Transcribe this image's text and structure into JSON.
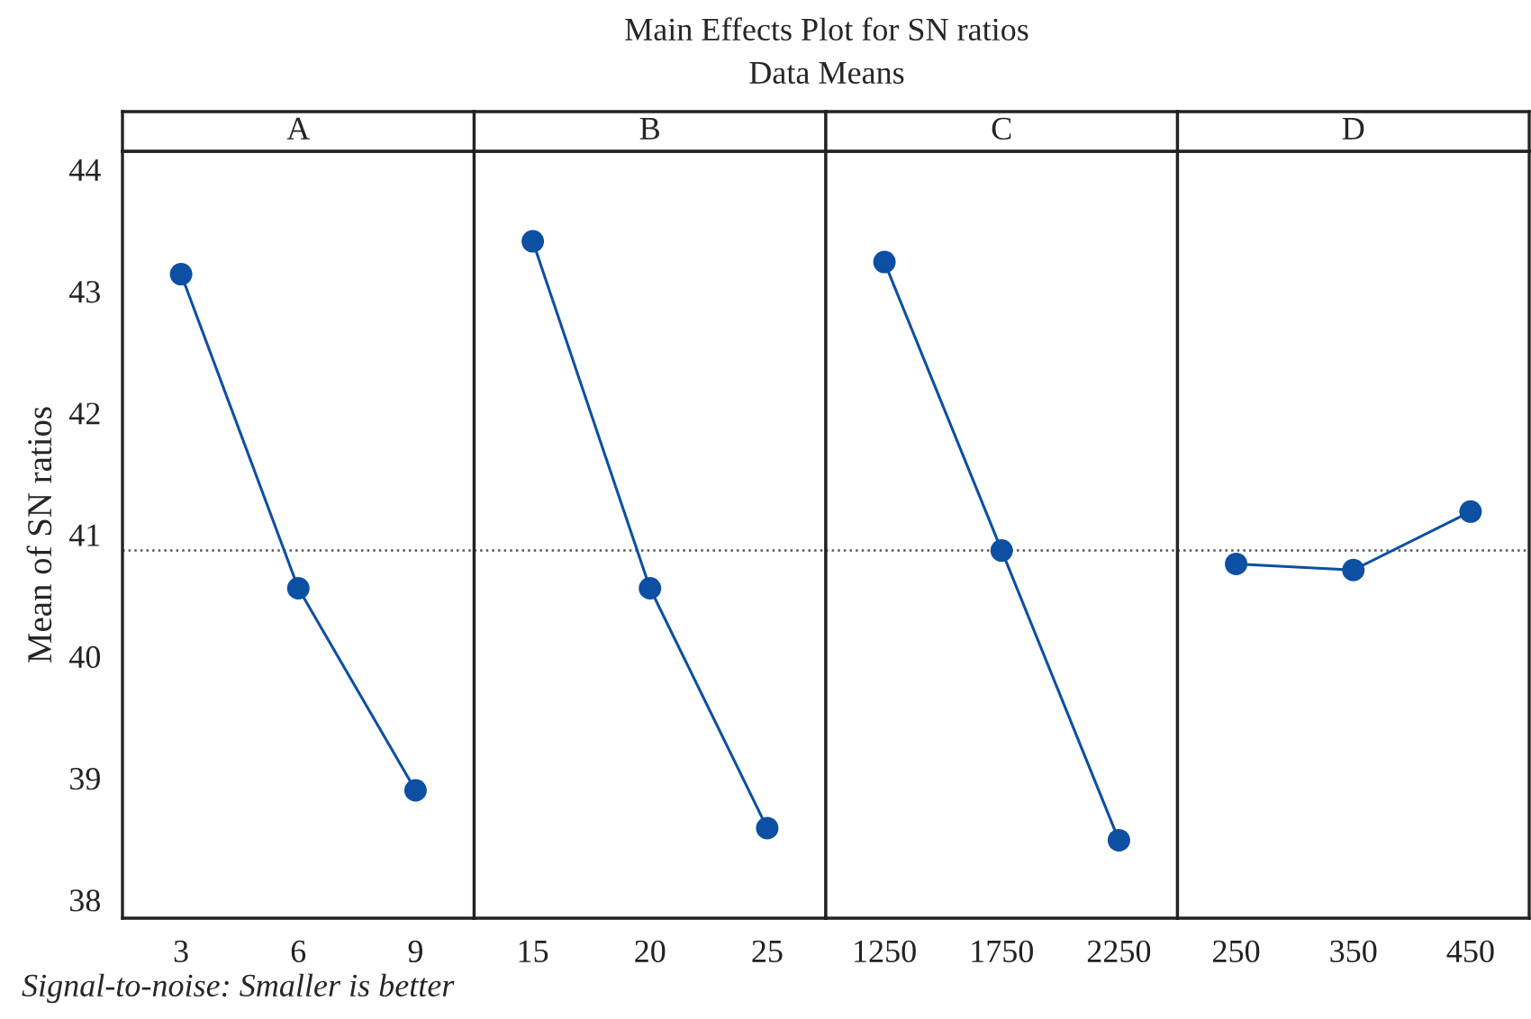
{
  "chart_data": [
    {
      "type": "line",
      "title": "A",
      "ylabel": "Mean of SN ratios",
      "categories": [
        "3",
        "6",
        "9"
      ],
      "series": [
        {
          "color": "#0d4fa3",
          "values": [
            43.14,
            40.56,
            38.9
          ]
        }
      ],
      "ylim": [
        37.85,
        44.15
      ],
      "yticks": [
        38,
        39,
        40,
        41,
        42,
        43,
        44
      ],
      "marker": "circle",
      "line_style": "solid",
      "grid": false,
      "ref_lines": [
        {
          "axis": "y",
          "value": 40.87,
          "color": "#555555",
          "line_style": "dotted"
        }
      ],
      "annotations": [
        "Main Effects Plot for SN ratios",
        "Data Means",
        "Signal-to-noise: Smaller is better"
      ]
    },
    {
      "type": "line",
      "title": "B",
      "categories": [
        "15",
        "20",
        "25"
      ],
      "series": [
        {
          "color": "#0d4fa3",
          "values": [
            43.41,
            40.56,
            38.59
          ]
        }
      ],
      "ylim": [
        37.85,
        44.15
      ],
      "tick_labels": "x",
      "marker": "circle",
      "line_style": "solid",
      "grid": false,
      "ref_lines": [
        {
          "axis": "y",
          "value": 40.87,
          "color": "#555555",
          "line_style": "dotted"
        }
      ]
    },
    {
      "type": "line",
      "title": "C",
      "categories": [
        "1250",
        "1750",
        "2250"
      ],
      "series": [
        {
          "color": "#0d4fa3",
          "values": [
            43.24,
            40.87,
            38.49
          ]
        }
      ],
      "ylim": [
        37.85,
        44.15
      ],
      "tick_labels": "x",
      "marker": "circle",
      "line_style": "solid",
      "grid": false,
      "ref_lines": [
        {
          "axis": "y",
          "value": 40.87,
          "color": "#555555",
          "line_style": "dotted"
        }
      ]
    },
    {
      "type": "line",
      "title": "D",
      "categories": [
        "250",
        "350",
        "450"
      ],
      "series": [
        {
          "color": "#0d4fa3",
          "values": [
            40.76,
            40.71,
            41.19
          ]
        }
      ],
      "ylim": [
        37.85,
        44.15
      ],
      "tick_labels": "x",
      "marker": "circle",
      "line_style": "solid",
      "grid": false,
      "ref_lines": [
        {
          "axis": "y",
          "value": 40.87,
          "color": "#555555",
          "line_style": "dotted"
        }
      ]
    }
  ]
}
